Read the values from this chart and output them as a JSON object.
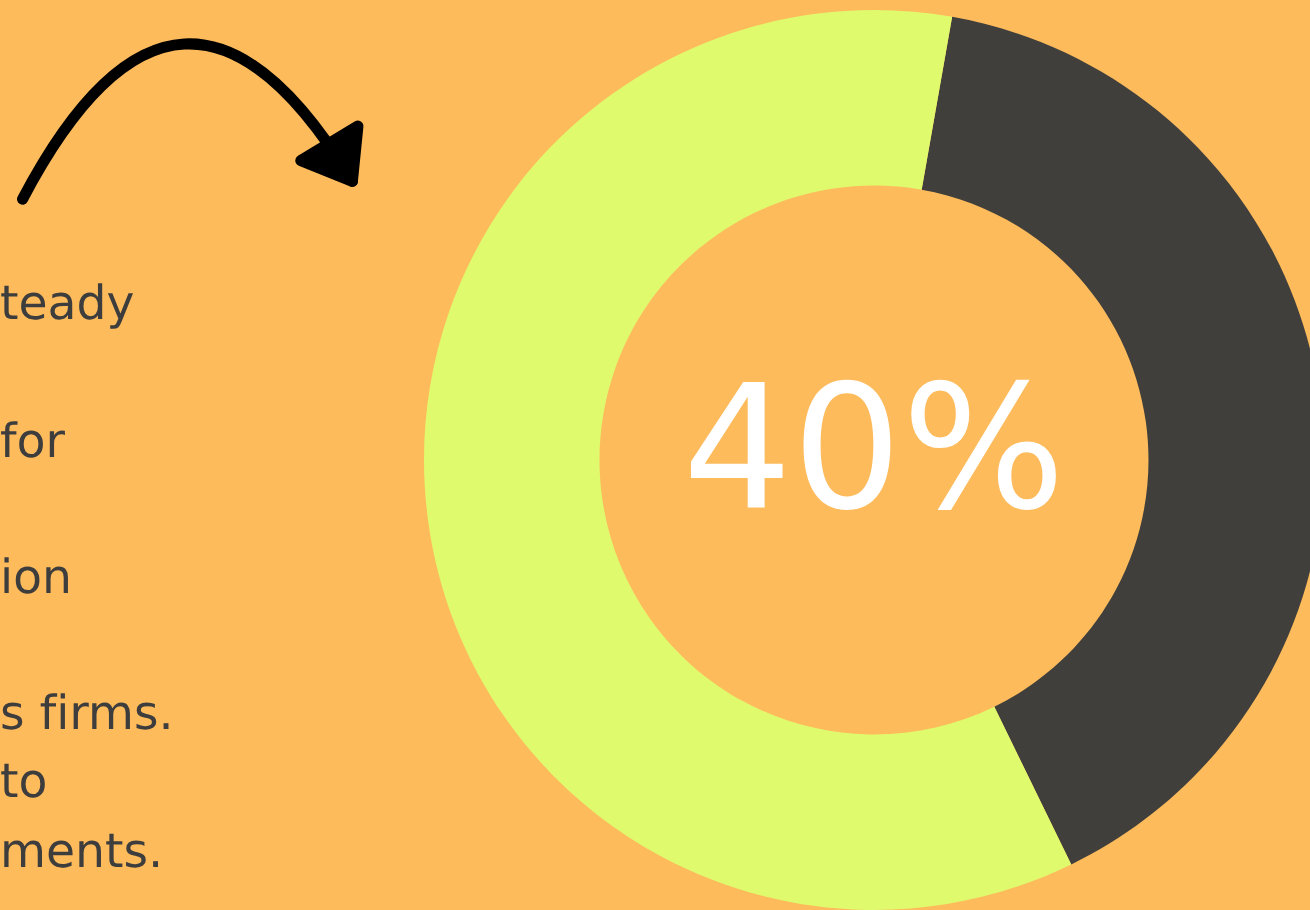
{
  "chart_data": {
    "type": "donut",
    "categories": [
      null,
      null
    ],
    "values": [
      40,
      60
    ],
    "colors": [
      "#403f3b",
      "#e0fa6e"
    ],
    "annotations": [
      "40%",
      "teady",
      "for",
      "ion",
      "s firms.",
      "to",
      "ments."
    ]
  }
}
